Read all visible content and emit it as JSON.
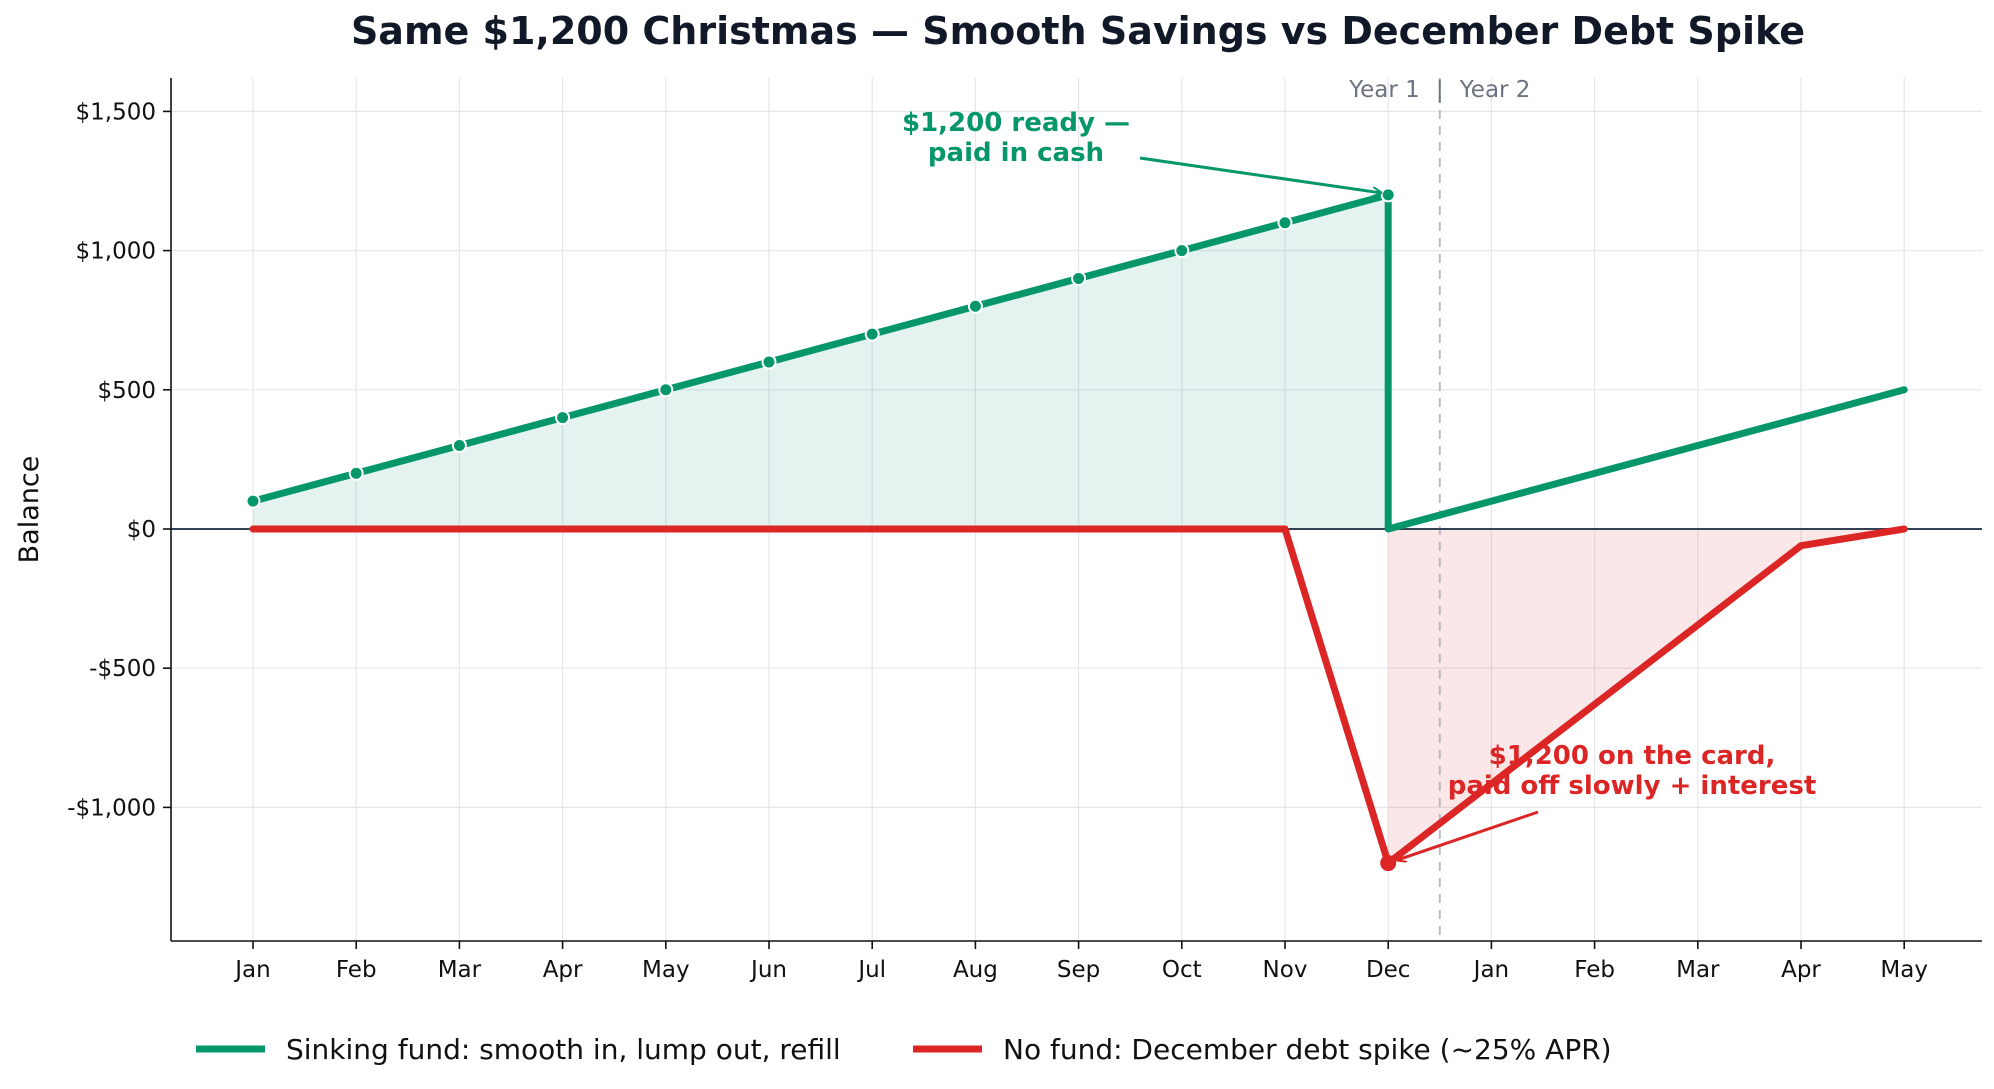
{
  "chart_data": {
    "type": "line",
    "title": "Same $1,200 Christmas — Smooth Savings vs December Debt Spike",
    "ylabel": "Balance",
    "xlabel": "",
    "categories": [
      "Jan",
      "Feb",
      "Mar",
      "Apr",
      "May",
      "Jun",
      "Jul",
      "Aug",
      "Sep",
      "Oct",
      "Nov",
      "Dec",
      "Jan",
      "Feb",
      "Mar",
      "Apr",
      "May"
    ],
    "ylim": [
      -1480,
      1620
    ],
    "yticks": [
      1500,
      1000,
      500,
      0,
      -500,
      -1000
    ],
    "ytick_labels": [
      "$1,500",
      "$1,000",
      "$500",
      "$0",
      "-$500",
      "-$1,000"
    ],
    "grid": true,
    "legend_position": "bottom",
    "year_divider": {
      "left_label": "Year 1",
      "separator": "|",
      "right_label": "Year 2"
    },
    "series": [
      {
        "name": "Sinking fund: smooth in, lump out, refill",
        "color": "#059669",
        "values": [
          100,
          200,
          300,
          400,
          500,
          600,
          700,
          800,
          900,
          1000,
          1100,
          1200,
          null,
          null,
          null,
          null,
          500
        ],
        "path": [
          [
            0,
            100
          ],
          [
            1,
            200
          ],
          [
            2,
            300
          ],
          [
            3,
            400
          ],
          [
            4,
            500
          ],
          [
            5,
            600
          ],
          [
            6,
            700
          ],
          [
            7,
            800
          ],
          [
            8,
            900
          ],
          [
            9,
            1000
          ],
          [
            10,
            1100
          ],
          [
            11,
            1200
          ],
          [
            11,
            0
          ],
          [
            16,
            500
          ]
        ]
      },
      {
        "name": "No fund: December debt spike (~25% APR)",
        "color": "#dc2626",
        "values": [
          0,
          0,
          0,
          0,
          0,
          0,
          0,
          0,
          0,
          0,
          0,
          -1200,
          null,
          null,
          null,
          -60,
          0
        ],
        "path": [
          [
            0,
            0
          ],
          [
            1,
            0
          ],
          [
            2,
            0
          ],
          [
            3,
            0
          ],
          [
            4,
            0
          ],
          [
            5,
            0
          ],
          [
            6,
            0
          ],
          [
            7,
            0
          ],
          [
            8,
            0
          ],
          [
            9,
            0
          ],
          [
            10,
            0
          ],
          [
            11,
            -1200
          ],
          [
            15,
            -60
          ],
          [
            16,
            0
          ]
        ]
      }
    ],
    "annotations": [
      {
        "lines": [
          "$1,200 ready —",
          "paid in cash"
        ],
        "color": "#059669",
        "target": [
          11,
          1200
        ]
      },
      {
        "lines": [
          "$1,200 on the card,",
          "paid off slowly + interest"
        ],
        "color": "#dc2626",
        "target": [
          11,
          -1200
        ]
      }
    ]
  }
}
